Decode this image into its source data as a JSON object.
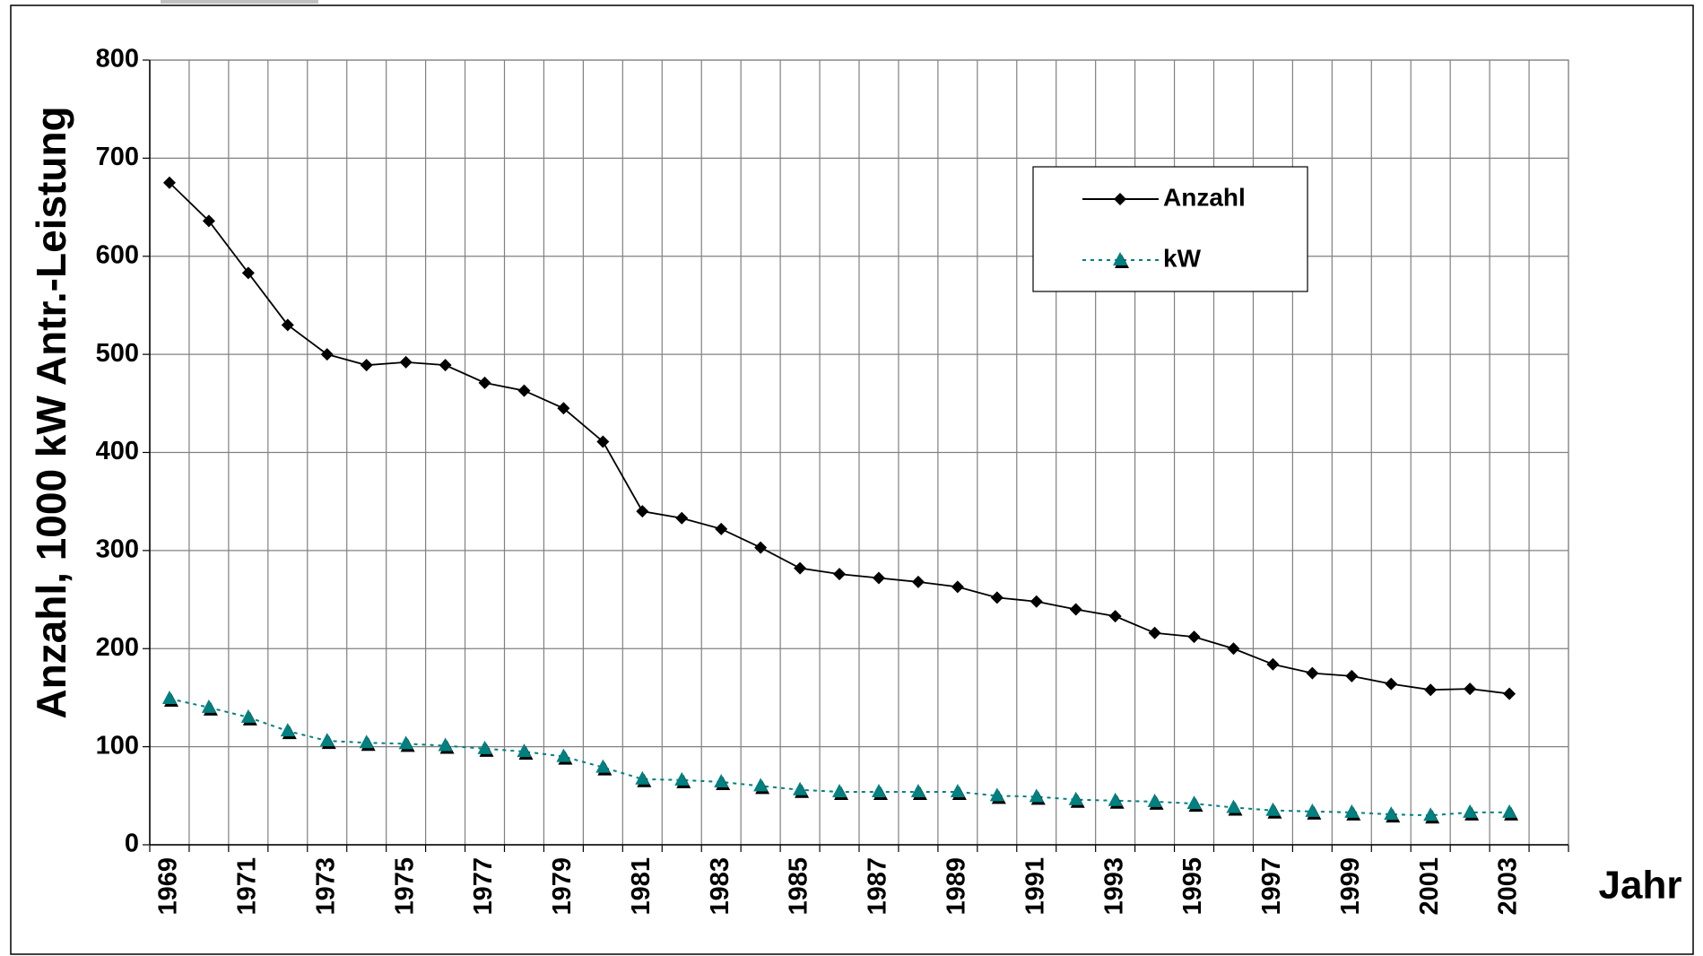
{
  "chart_data": {
    "type": "line",
    "categories": [
      "1969",
      null,
      "1971",
      null,
      "1973",
      null,
      "1975",
      null,
      "1977",
      null,
      "1979",
      null,
      "1981",
      null,
      "1983",
      null,
      "1985",
      null,
      "1987",
      null,
      "1989",
      null,
      "1991",
      null,
      "1993",
      null,
      "1995",
      null,
      "1997",
      null,
      "1999",
      null,
      "2001",
      null,
      "2003",
      null
    ],
    "series": [
      {
        "name": "Anzahl",
        "color": "#000000",
        "marker": "diamond",
        "dash": "solid",
        "values": [
          675,
          636,
          583,
          530,
          500,
          489,
          492,
          489,
          471,
          463,
          445,
          411,
          340,
          333,
          322,
          303,
          282,
          276,
          272,
          268,
          263,
          252,
          248,
          240,
          233,
          216,
          212,
          200,
          184,
          175,
          172,
          164,
          158,
          159,
          154,
          null
        ]
      },
      {
        "name": "kW",
        "color": "#008080",
        "marker": "triangle",
        "dash": "dotted",
        "values": [
          149,
          140,
          130,
          116,
          106,
          104,
          103,
          101,
          98,
          95,
          90,
          79,
          67,
          66,
          64,
          60,
          56,
          54,
          54,
          54,
          54,
          50,
          49,
          46,
          45,
          44,
          42,
          38,
          35,
          34,
          33,
          31,
          30,
          33,
          33,
          null
        ]
      }
    ],
    "y_label": "Anzahl, 1000 kW Antr.-Leistung",
    "x_label": "Jahr",
    "ylim": [
      0,
      800
    ],
    "yticks": [
      0,
      100,
      200,
      300,
      400,
      500,
      600,
      700,
      800
    ],
    "grid": true
  }
}
